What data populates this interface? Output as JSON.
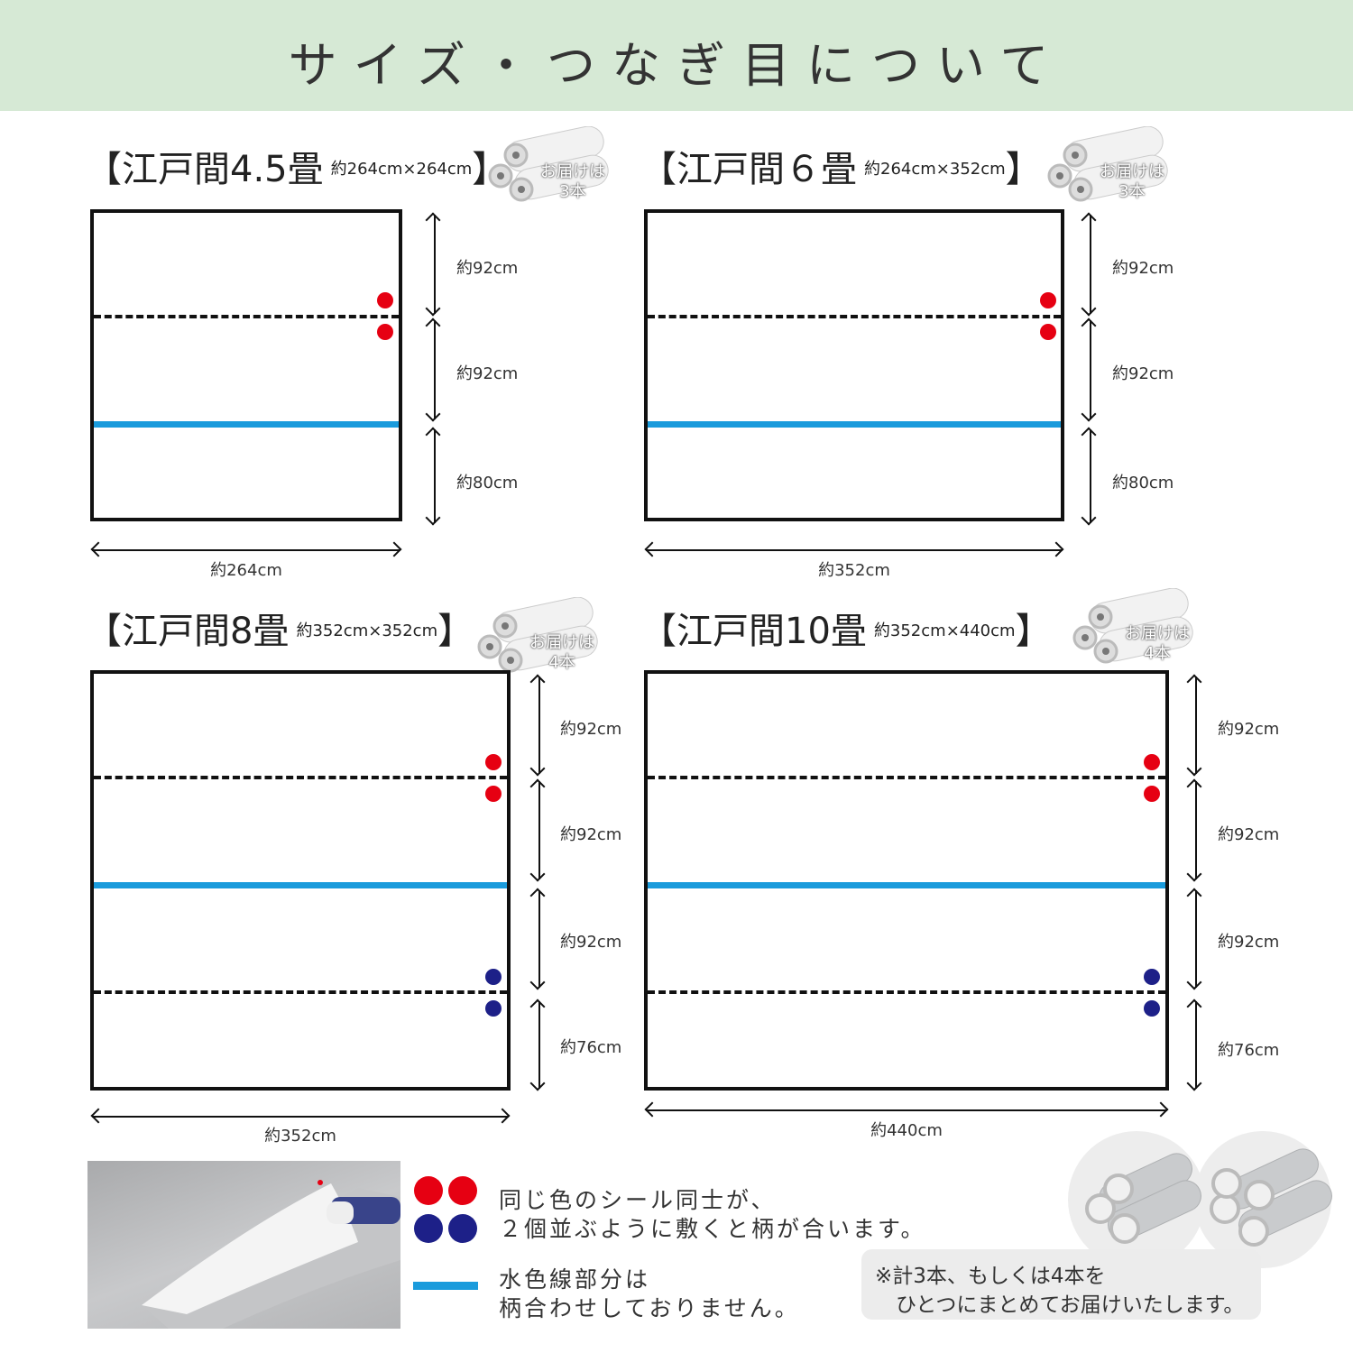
{
  "header": {
    "title": "サイズ・つなぎ目について"
  },
  "colors": {
    "header_bg": "#d6e9d5",
    "seam_blue": "#1a9bdc",
    "dot_red": "#e60012",
    "dot_navy": "#1d2088"
  },
  "panels": [
    {
      "title": "【江戸間4.5畳",
      "size": "約264cm×264cm",
      "bracket": "】",
      "delivery": "お届けは",
      "count": "3本",
      "rows": [
        "約92cm",
        "約92cm",
        "約80cm"
      ],
      "width": "約264cm"
    },
    {
      "title": "【江戸間６畳",
      "size": "約264cm×352cm",
      "bracket": "】",
      "delivery": "お届けは",
      "count": "3本",
      "rows": [
        "約92cm",
        "約92cm",
        "約80cm"
      ],
      "width": "約352cm"
    },
    {
      "title": "【江戸間8畳",
      "size": "約352cm×352cm",
      "bracket": "】",
      "delivery": "お届けは",
      "count": "4本",
      "rows": [
        "約92cm",
        "約92cm",
        "約92cm",
        "約76cm"
      ],
      "width": "約352cm"
    },
    {
      "title": "【江戸間10畳",
      "size": "約352cm×440cm",
      "bracket": "】",
      "delivery": "お届けは",
      "count": "4本",
      "rows": [
        "約92cm",
        "約92cm",
        "約92cm",
        "約76cm"
      ],
      "width": "約440cm"
    }
  ],
  "legend": {
    "dots_line1": "同じ色のシール同士が、",
    "dots_line2": "２個並ぶように敷くと柄が合います。",
    "blue_line1": "水色線部分は",
    "blue_line2": "柄合わせしておりません。"
  },
  "note": {
    "line1": "※計3本、もしくは4本を",
    "line2": "ひとつにまとめてお届けいたします。"
  }
}
